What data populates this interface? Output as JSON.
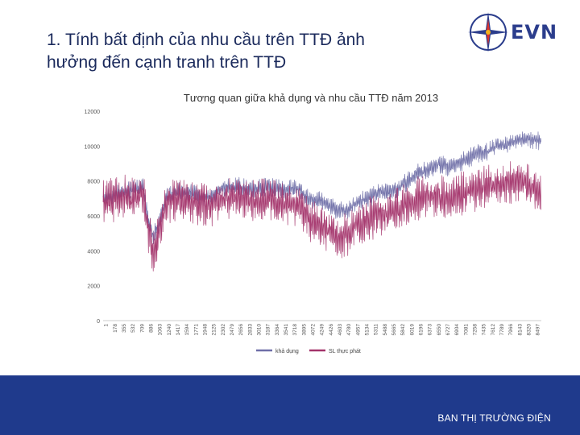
{
  "slide": {
    "title_line1": "1. Tính bất định của nhu cầu trên TTĐ ảnh",
    "title_line2": "hưởng đến cạnh tranh trên TTĐ",
    "logo_text": "EVN",
    "footer": "BAN THỊ TRƯỜNG ĐIỆN"
  },
  "colors": {
    "title": "#1b2a5c",
    "brand_blue": "#2b3d8c",
    "footer_bg": "#1f3a8c",
    "series_available": "#6f6fa8",
    "series_actual": "#a3336a"
  },
  "chart_data": {
    "type": "line",
    "title": "Tương quan giữa khả dụng và nhu cầu TTĐ năm 2013",
    "ylim": [
      0,
      12000
    ],
    "yticks": [
      "0",
      "2000",
      "4000",
      "6000",
      "8000",
      "10000",
      "12000"
    ],
    "x_count": 8760,
    "x_tick_labels": [
      "1",
      "178",
      "355",
      "532",
      "709",
      "886",
      "1063",
      "1240",
      "1417",
      "1594",
      "1771",
      "1948",
      "2125",
      "2302",
      "2479",
      "2656",
      "2833",
      "3010",
      "3187",
      "3364",
      "3541",
      "3718",
      "3895",
      "4072",
      "4249",
      "4426",
      "4603",
      "4780",
      "4957",
      "5134",
      "5311",
      "5488",
      "5665",
      "5842",
      "6019",
      "6196",
      "6373",
      "6550",
      "6727",
      "6904",
      "7081",
      "7258",
      "7435",
      "7612",
      "7789",
      "7966",
      "8143",
      "8320",
      "8497"
    ],
    "series": [
      {
        "name": "khả dụng",
        "anchors": [
          [
            1,
            7100
          ],
          [
            200,
            7200
          ],
          [
            400,
            7400
          ],
          [
            600,
            7500
          ],
          [
            800,
            7700
          ],
          [
            900,
            5800
          ],
          [
            1000,
            4800
          ],
          [
            1100,
            5400
          ],
          [
            1250,
            7000
          ],
          [
            1500,
            7400
          ],
          [
            1800,
            7300
          ],
          [
            2100,
            7000
          ],
          [
            2400,
            7600
          ],
          [
            2700,
            7700
          ],
          [
            3000,
            7500
          ],
          [
            3300,
            7700
          ],
          [
            3600,
            7500
          ],
          [
            3900,
            7600
          ],
          [
            4100,
            7000
          ],
          [
            4300,
            6900
          ],
          [
            4500,
            6600
          ],
          [
            4700,
            6300
          ],
          [
            4900,
            6400
          ],
          [
            5100,
            6800
          ],
          [
            5300,
            7000
          ],
          [
            5500,
            7300
          ],
          [
            5700,
            7400
          ],
          [
            5900,
            7600
          ],
          [
            6100,
            8000
          ],
          [
            6300,
            8500
          ],
          [
            6500,
            8600
          ],
          [
            6700,
            9000
          ],
          [
            6900,
            8800
          ],
          [
            7100,
            9000
          ],
          [
            7300,
            9300
          ],
          [
            7500,
            9600
          ],
          [
            7700,
            9700
          ],
          [
            7900,
            10000
          ],
          [
            8100,
            10100
          ],
          [
            8300,
            10400
          ],
          [
            8500,
            10400
          ],
          [
            8700,
            10300
          ]
        ],
        "noise": 550
      },
      {
        "name": "SL thực phát",
        "anchors": [
          [
            1,
            6800
          ],
          [
            200,
            6900
          ],
          [
            400,
            7100
          ],
          [
            600,
            7000
          ],
          [
            800,
            7400
          ],
          [
            900,
            5200
          ],
          [
            1000,
            4000
          ],
          [
            1100,
            4800
          ],
          [
            1250,
            6800
          ],
          [
            1500,
            7000
          ],
          [
            1800,
            6800
          ],
          [
            2100,
            6500
          ],
          [
            2400,
            7000
          ],
          [
            2700,
            7100
          ],
          [
            3000,
            6800
          ],
          [
            3300,
            7000
          ],
          [
            3600,
            6700
          ],
          [
            3900,
            6700
          ],
          [
            4100,
            5800
          ],
          [
            4300,
            5600
          ],
          [
            4500,
            5200
          ],
          [
            4700,
            4800
          ],
          [
            4900,
            5000
          ],
          [
            5100,
            5600
          ],
          [
            5300,
            5800
          ],
          [
            5500,
            6000
          ],
          [
            5700,
            6100
          ],
          [
            5900,
            6400
          ],
          [
            6100,
            6700
          ],
          [
            6300,
            7000
          ],
          [
            6500,
            7000
          ],
          [
            6700,
            7200
          ],
          [
            6900,
            6800
          ],
          [
            7100,
            7200
          ],
          [
            7300,
            7400
          ],
          [
            7500,
            7500
          ],
          [
            7700,
            7800
          ],
          [
            7900,
            7700
          ],
          [
            8100,
            7900
          ],
          [
            8300,
            8100
          ],
          [
            8500,
            7800
          ],
          [
            8700,
            7400
          ]
        ],
        "noise": 1300
      }
    ],
    "legend_position": "bottom",
    "grid": false
  }
}
